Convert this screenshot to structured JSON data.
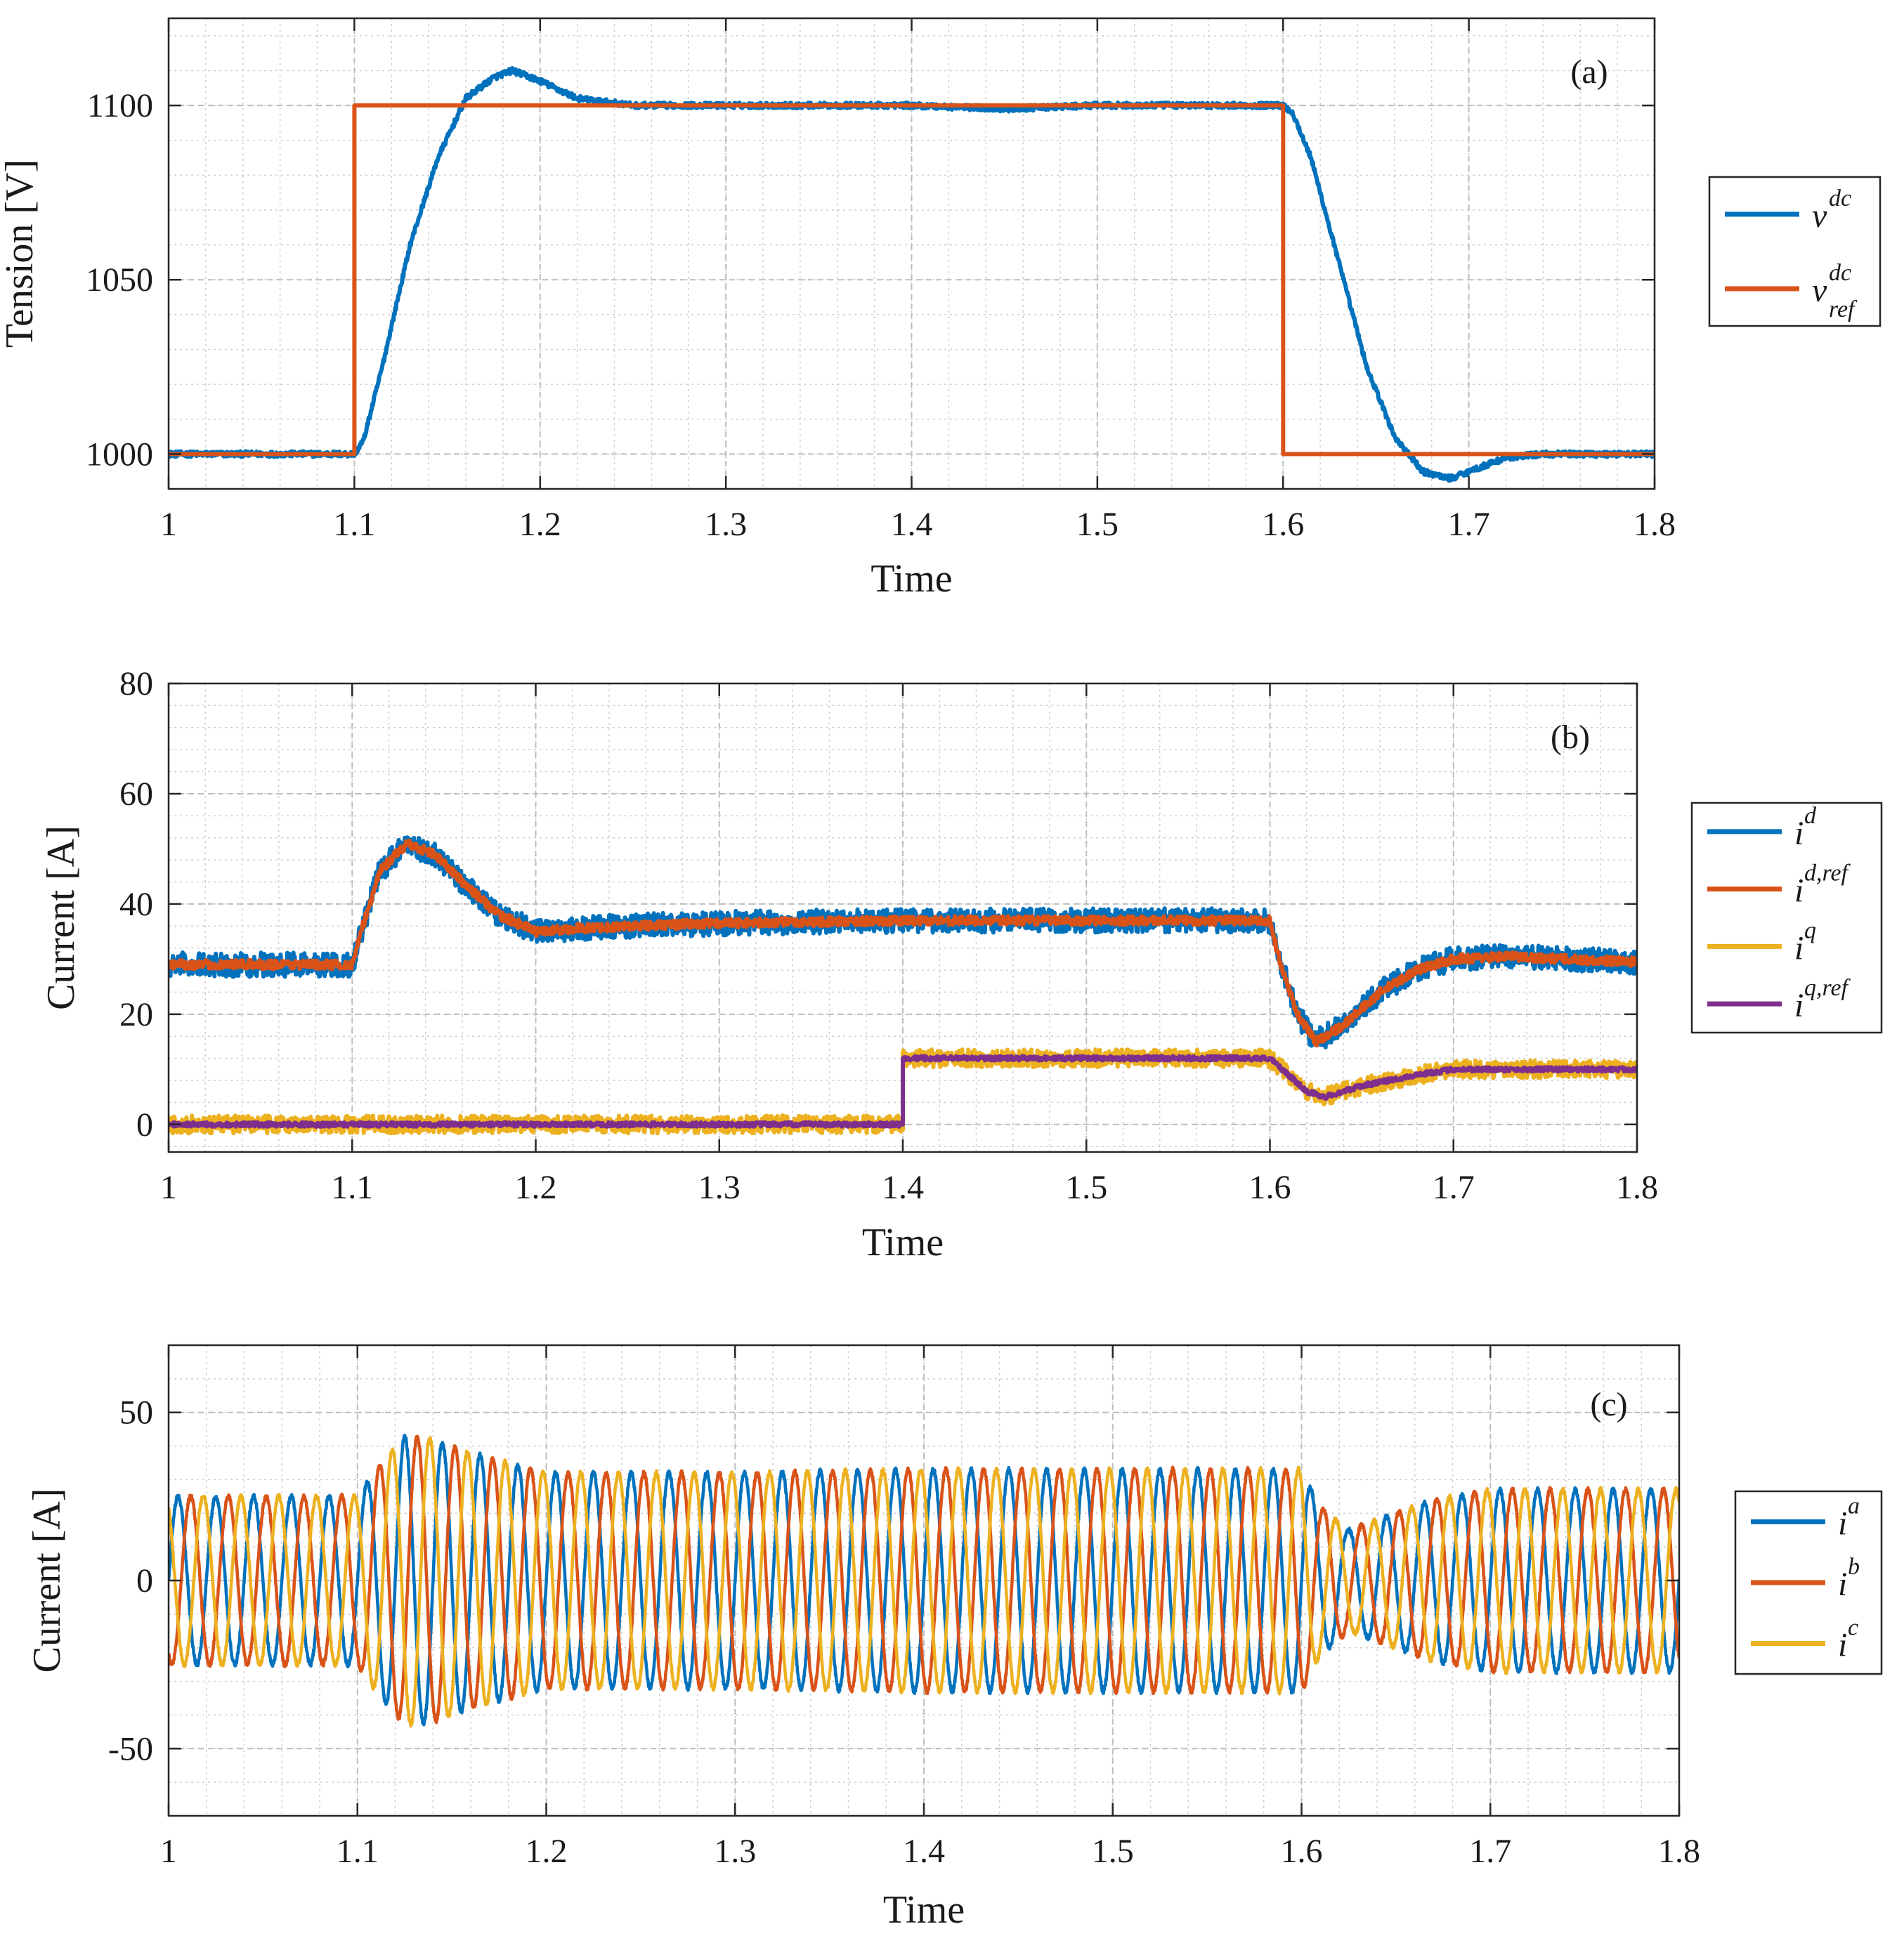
{
  "chart_data": [
    {
      "type": "line",
      "panel_tag": "(a)",
      "xlabel": "Time",
      "ylabel": "Tension [V]",
      "xlim": [
        1,
        1.8
      ],
      "ylim": [
        990,
        1125
      ],
      "xticks": [
        1,
        1.1,
        1.2,
        1.3,
        1.4,
        1.5,
        1.6,
        1.7,
        1.8
      ],
      "xtick_labels": [
        "1",
        "1.1",
        "1.2",
        "1.3",
        "1.4",
        "1.5",
        "1.6",
        "1.7",
        "1.8"
      ],
      "yticks": [
        1000,
        1050,
        1100
      ],
      "ytick_labels": [
        "1000",
        "1050",
        "1100"
      ],
      "grid": true,
      "legend_position": "outside-right",
      "series": [
        {
          "name": "v_dc",
          "sym": "v",
          "sup": "dc",
          "sub": "",
          "color": "#0072BD",
          "noise": 0.8,
          "x": [
            1.0,
            1.1,
            1.105,
            1.115,
            1.13,
            1.145,
            1.16,
            1.175,
            1.185,
            1.2,
            1.22,
            1.25,
            1.3,
            1.4,
            1.45,
            1.5,
            1.6,
            1.605,
            1.615,
            1.63,
            1.645,
            1.66,
            1.675,
            1.69,
            1.705,
            1.72,
            1.74,
            1.8
          ],
          "y": [
            1000,
            1000,
            1004,
            1025,
            1060,
            1085,
            1102,
            1108,
            1110,
            1107,
            1102,
            1100,
            1100,
            1100,
            1099,
            1100,
            1100,
            1098,
            1085,
            1055,
            1025,
            1005,
            995,
            993,
            996,
            999,
            1000,
            1000
          ]
        },
        {
          "name": "v_dc_ref",
          "sym": "v",
          "sup": "dc",
          "sub": "ref",
          "color": "#D95319",
          "noise": 0,
          "x": [
            1.0,
            1.1,
            1.1,
            1.6,
            1.6,
            1.8
          ],
          "y": [
            1000,
            1000,
            1100,
            1100,
            1000,
            1000
          ]
        }
      ]
    },
    {
      "type": "line",
      "panel_tag": "(b)",
      "xlabel": "Time",
      "ylabel": "Current [A]",
      "xlim": [
        1,
        1.8
      ],
      "ylim": [
        -5,
        80
      ],
      "xticks": [
        1,
        1.1,
        1.2,
        1.3,
        1.4,
        1.5,
        1.6,
        1.7,
        1.8
      ],
      "xtick_labels": [
        "1",
        "1.1",
        "1.2",
        "1.3",
        "1.4",
        "1.5",
        "1.6",
        "1.7",
        "1.8"
      ],
      "yticks": [
        0,
        20,
        40,
        60,
        80
      ],
      "ytick_labels": [
        "0",
        "20",
        "40",
        "60",
        "80"
      ],
      "grid": true,
      "legend_position": "outside-right",
      "series": [
        {
          "name": "i_d",
          "sym": "i",
          "sup": "d",
          "sub": "",
          "color": "#0072BD",
          "noise": 2.2,
          "x": [
            1.0,
            1.1,
            1.105,
            1.115,
            1.13,
            1.145,
            1.16,
            1.18,
            1.2,
            1.22,
            1.25,
            1.3,
            1.4,
            1.5,
            1.6,
            1.605,
            1.615,
            1.625,
            1.64,
            1.66,
            1.68,
            1.7,
            1.73,
            1.76,
            1.8
          ],
          "y": [
            29,
            29,
            35,
            46,
            51,
            49,
            44,
            38,
            35,
            35.5,
            36,
            36.5,
            37,
            37,
            37,
            30,
            20,
            15,
            18,
            24,
            28,
            30,
            30.5,
            30,
            29.5
          ]
        },
        {
          "name": "i_d_ref",
          "sym": "i",
          "sup": "d,ref",
          "sub": "",
          "color": "#D95319",
          "noise": 0.8,
          "x": [
            1.0,
            1.1,
            1.105,
            1.115,
            1.13,
            1.145,
            1.16,
            1.18,
            1.2,
            1.22,
            1.25,
            1.3,
            1.4,
            1.5,
            1.6,
            1.605,
            1.615,
            1.625,
            1.64,
            1.66,
            1.68,
            1.7,
            1.73,
            1.76,
            1.8
          ],
          "y": [
            29,
            29,
            35,
            46,
            51,
            49,
            44,
            38,
            35,
            35.5,
            36,
            36.5,
            37,
            37,
            37,
            30,
            20,
            15,
            18,
            24,
            28,
            30,
            30.5,
            30,
            29.5
          ]
        },
        {
          "name": "i_q",
          "sym": "i",
          "sup": "q",
          "sub": "",
          "color": "#EDB120",
          "noise": 1.6,
          "x": [
            1.0,
            1.4,
            1.4,
            1.6,
            1.61,
            1.62,
            1.63,
            1.65,
            1.68,
            1.7,
            1.75,
            1.8
          ],
          "y": [
            0,
            0,
            12,
            12,
            9,
            6,
            5,
            7,
            9,
            10,
            10,
            10
          ]
        },
        {
          "name": "i_q_ref",
          "sym": "i",
          "sup": "q,ref",
          "sub": "",
          "color": "#7E2F8E",
          "noise": 0.4,
          "x": [
            1.0,
            1.4,
            1.4,
            1.6,
            1.61,
            1.62,
            1.63,
            1.65,
            1.68,
            1.7,
            1.75,
            1.8
          ],
          "y": [
            0,
            0,
            12,
            12,
            9,
            6,
            5,
            7,
            9,
            10,
            10,
            10
          ]
        }
      ]
    },
    {
      "type": "line",
      "panel_tag": "(c)",
      "xlabel": "Time",
      "ylabel": "Current [A]",
      "xlim": [
        1,
        1.8
      ],
      "ylim": [
        -70,
        70
      ],
      "xticks": [
        1,
        1.1,
        1.2,
        1.3,
        1.4,
        1.5,
        1.6,
        1.7,
        1.8
      ],
      "xtick_labels": [
        "1",
        "1.1",
        "1.2",
        "1.3",
        "1.4",
        "1.5",
        "1.6",
        "1.7",
        "1.8"
      ],
      "yticks": [
        -50,
        0,
        50
      ],
      "ytick_labels": [
        "-50",
        "0",
        "50"
      ],
      "grid": true,
      "legend_position": "outside-right",
      "frequency_hz": 50,
      "amplitude_envelope": {
        "x": [
          1.0,
          1.1,
          1.11,
          1.125,
          1.14,
          1.16,
          1.2,
          1.3,
          1.4,
          1.5,
          1.6,
          1.61,
          1.625,
          1.64,
          1.67,
          1.7,
          1.8
        ],
        "y": [
          25,
          25,
          33,
          43,
          42,
          38,
          32,
          32,
          33,
          33,
          33,
          22,
          15,
          18,
          24,
          27,
          27
        ]
      },
      "series": [
        {
          "name": "i_a",
          "sym": "i",
          "sup": "a",
          "sub": "",
          "color": "#0072BD",
          "phase_deg": 0
        },
        {
          "name": "i_b",
          "sym": "i",
          "sup": "b",
          "sub": "",
          "color": "#D95319",
          "phase_deg": -120
        },
        {
          "name": "i_c",
          "sym": "i",
          "sup": "c",
          "sub": "",
          "color": "#EDB120",
          "phase_deg": 120
        }
      ]
    }
  ]
}
